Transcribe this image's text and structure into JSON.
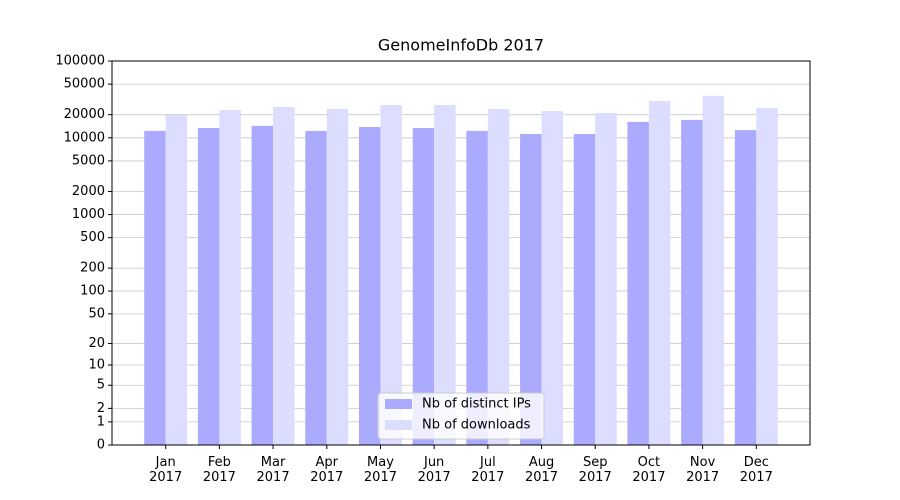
{
  "chart_data": {
    "type": "bar",
    "title": "GenomeInfoDb 2017",
    "categories": [
      "Jan 2017",
      "Feb 2017",
      "Mar 2017",
      "Apr 2017",
      "May 2017",
      "Jun 2017",
      "Jul 2017",
      "Aug 2017",
      "Sep 2017",
      "Oct 2017",
      "Nov 2017",
      "Dec 2017"
    ],
    "series": [
      {
        "name": "Nb of distinct IPs",
        "color": "#aaaaff",
        "values": [
          12300,
          13400,
          14300,
          12300,
          13800,
          13400,
          12300,
          11200,
          11200,
          16100,
          17100,
          12600
        ]
      },
      {
        "name": "Nb of downloads",
        "color": "#ddddff",
        "values": [
          19800,
          23000,
          25200,
          23700,
          26700,
          26700,
          23700,
          22300,
          21000,
          30100,
          35200,
          24400
        ]
      }
    ],
    "yscale": "symlog",
    "ylim": [
      0,
      100000
    ],
    "yticks": [
      0,
      1,
      2,
      5,
      10,
      20,
      50,
      100,
      200,
      500,
      1000,
      2000,
      5000,
      10000,
      20000,
      50000,
      100000
    ],
    "grid": true,
    "legend": "lower center"
  }
}
